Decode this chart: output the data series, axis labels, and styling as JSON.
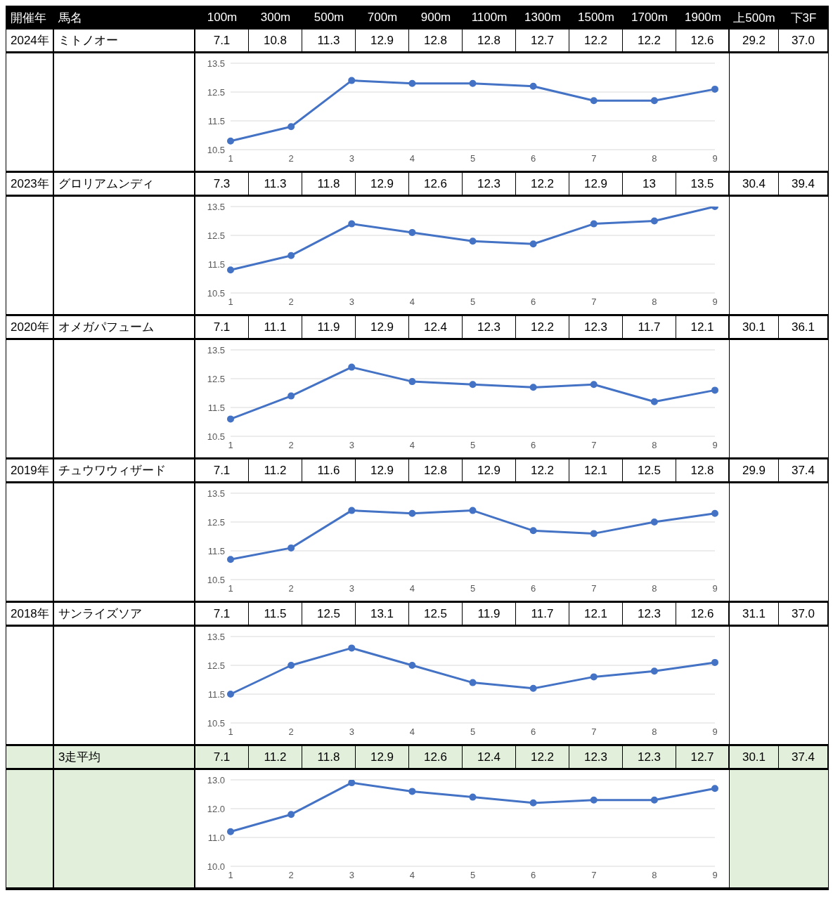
{
  "chart_data": [
    {
      "type": "line",
      "annotations": [
        "開催年",
        "馬名",
        "100m",
        "300m",
        "500m",
        "700m",
        "900m",
        "1100m",
        "1300m",
        "1500m",
        "1700m",
        "1900m",
        "上500m",
        "下3F",
        "2024年",
        "ミトノオー",
        "7.1",
        "10.8",
        "11.3",
        "12.9",
        "12.8",
        "12.8",
        "12.7",
        "12.2",
        "12.2",
        "12.6",
        "29.2",
        "37.0"
      ],
      "categories": [
        "1",
        "2",
        "3",
        "4",
        "5",
        "6",
        "7",
        "8",
        "9"
      ],
      "values": [
        10.8,
        11.3,
        12.9,
        12.8,
        12.8,
        12.7,
        12.2,
        12.2,
        12.6
      ],
      "color": "#4472c4",
      "ylim": [
        10.5,
        13.5
      ],
      "yticks": [
        10.5,
        11.5,
        12.5,
        13.5
      ],
      "grid": "y",
      "marker": "circle",
      "line_style": "solid",
      "legend": false
    },
    {
      "type": "line",
      "annotations": [
        "2023年",
        "グロリアムンディ",
        "7.3",
        "11.3",
        "11.8",
        "12.9",
        "12.6",
        "12.3",
        "12.2",
        "12.9",
        "13",
        "13.5",
        "30.4",
        "39.4"
      ],
      "categories": [
        "1",
        "2",
        "3",
        "4",
        "5",
        "6",
        "7",
        "8",
        "9"
      ],
      "values": [
        11.3,
        11.8,
        12.9,
        12.6,
        12.3,
        12.2,
        12.9,
        13,
        13.5
      ],
      "color": "#4472c4",
      "ylim": [
        10.5,
        13.5
      ],
      "yticks": [
        10.5,
        11.5,
        12.5,
        13.5
      ],
      "grid": "y",
      "marker": "circle",
      "line_style": "solid",
      "legend": false
    },
    {
      "type": "line",
      "annotations": [
        "2020年",
        "オメガパフューム",
        "7.1",
        "11.1",
        "11.9",
        "12.9",
        "12.4",
        "12.3",
        "12.2",
        "12.3",
        "11.7",
        "12.1",
        "30.1",
        "36.1"
      ],
      "categories": [
        "1",
        "2",
        "3",
        "4",
        "5",
        "6",
        "7",
        "8",
        "9"
      ],
      "values": [
        11.1,
        11.9,
        12.9,
        12.4,
        12.3,
        12.2,
        12.3,
        11.7,
        12.1
      ],
      "color": "#4472c4",
      "ylim": [
        10.5,
        13.5
      ],
      "yticks": [
        10.5,
        11.5,
        12.5,
        13.5
      ],
      "grid": "y",
      "marker": "circle",
      "line_style": "solid",
      "legend": false
    },
    {
      "type": "line",
      "annotations": [
        "2019年",
        "チュウワウィザード",
        "7.1",
        "11.2",
        "11.6",
        "12.9",
        "12.8",
        "12.9",
        "12.2",
        "12.1",
        "12.5",
        "12.8",
        "29.9",
        "37.4"
      ],
      "categories": [
        "1",
        "2",
        "3",
        "4",
        "5",
        "6",
        "7",
        "8",
        "9"
      ],
      "values": [
        11.2,
        11.6,
        12.9,
        12.8,
        12.9,
        12.2,
        12.1,
        12.5,
        12.8
      ],
      "color": "#4472c4",
      "ylim": [
        10.5,
        13.5
      ],
      "yticks": [
        10.5,
        11.5,
        12.5,
        13.5
      ],
      "grid": "y",
      "marker": "circle",
      "line_style": "solid",
      "legend": false
    },
    {
      "type": "line",
      "annotations": [
        "2018年",
        "サンライズソア",
        "7.1",
        "11.5",
        "12.5",
        "13.1",
        "12.5",
        "11.9",
        "11.7",
        "12.1",
        "12.3",
        "12.6",
        "31.1",
        "37.0"
      ],
      "categories": [
        "1",
        "2",
        "3",
        "4",
        "5",
        "6",
        "7",
        "8",
        "9"
      ],
      "values": [
        11.5,
        12.5,
        13.1,
        12.5,
        11.9,
        11.7,
        12.1,
        12.3,
        12.6
      ],
      "color": "#4472c4",
      "ylim": [
        10.5,
        13.5
      ],
      "yticks": [
        10.5,
        11.5,
        12.5,
        13.5
      ],
      "grid": "y",
      "marker": "circle",
      "line_style": "solid",
      "legend": false
    },
    {
      "type": "line",
      "annotations": [
        "3走平均",
        "7.1",
        "11.2",
        "11.8",
        "12.9",
        "12.6",
        "12.4",
        "12.2",
        "12.3",
        "12.3",
        "12.7",
        "30.1",
        "37.4"
      ],
      "categories": [
        "1",
        "2",
        "3",
        "4",
        "5",
        "6",
        "7",
        "8",
        "9"
      ],
      "values": [
        11.2,
        11.8,
        12.9,
        12.6,
        12.4,
        12.2,
        12.3,
        12.3,
        12.7
      ],
      "color": "#4472c4",
      "ylim": [
        10,
        13
      ],
      "yticks": [
        {
          "value": 10,
          "label": "10.0"
        },
        {
          "value": 11,
          "label": "11.0"
        },
        {
          "value": 12,
          "label": "12.0"
        },
        {
          "value": 13,
          "label": "13.0"
        }
      ],
      "grid": "y",
      "marker": "circle",
      "line_style": "solid",
      "legend": false
    }
  ]
}
